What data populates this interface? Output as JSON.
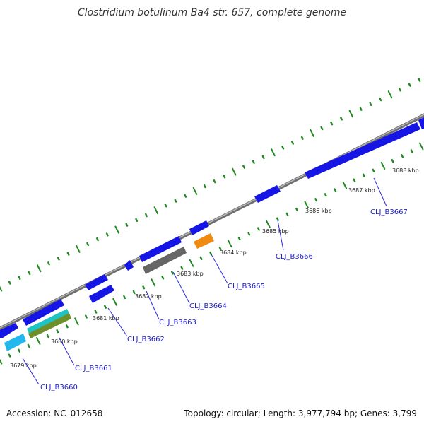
{
  "title": "Clostridium botulinum Ba4 str. 657, complete genome",
  "footer": {
    "accession": "Accession: NC_012658",
    "summary": "Topology: circular; Length: 3,977,794 bp; Genes: 3,799"
  },
  "colors": {
    "backbone": "#8a8a8a",
    "tick": "#1f8a1f",
    "gene": "#1515e6",
    "label_line": "#2a2ad6",
    "label_text": "#1a1acc",
    "cyan": "#22b8ee",
    "teal": "#1ec4c4",
    "olive": "#6f8f2a",
    "orange": "#f08a10",
    "gray": "#666666"
  },
  "kbp_labels": [
    "3679 kbp",
    "3680 kbp",
    "3681 kbp",
    "3682 kbp",
    "3683 kbp",
    "3684 kbp",
    "3685 kbp",
    "3686 kbp",
    "3687 kbp",
    "3688 kbp"
  ],
  "gene_labels": [
    "CLJ_B3660",
    "CLJ_B3661",
    "CLJ_B3662",
    "CLJ_B3663",
    "CLJ_B3664",
    "CLJ_B3665",
    "CLJ_B3666",
    "CLJ_B3667"
  ]
}
